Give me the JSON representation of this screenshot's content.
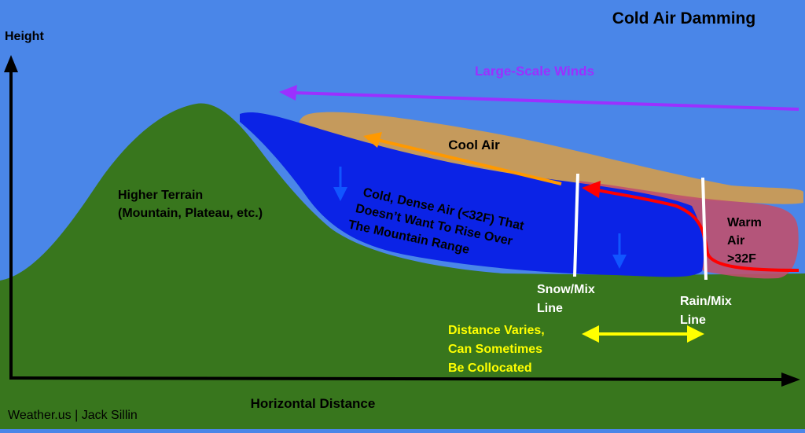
{
  "title": "Cold Air Damming",
  "axes": {
    "y_label": "Height",
    "x_label": "Horizontal Distance"
  },
  "labels": {
    "large_scale_winds": "Large-Scale Winds",
    "cool_air": "Cool Air",
    "higher_terrain": [
      "Higher Terrain",
      "(Mountain, Plateau, etc.)"
    ],
    "cold_dense_air": [
      "Cold, Dense Air (<32F) That",
      "Doesn’t Want To Rise Over",
      "The Mountain Range"
    ],
    "warm_air": [
      "Warm",
      "Air",
      ">32F"
    ],
    "snow_mix_line": [
      "Snow/Mix",
      "Line"
    ],
    "rain_mix_line": [
      "Rain/Mix",
      "Line"
    ],
    "distance_note": [
      "Distance Varies,",
      "Can Sometimes",
      "Be Collocated"
    ]
  },
  "credit": "Weather.us | Jack Sillin",
  "colors": {
    "sky": "#4a86e8",
    "terrain": "#38761d",
    "cold_air": "#0b23e6",
    "cool_air": "#c59a5c",
    "warm_air": "#c0506e",
    "winds": "#9b30ff",
    "cool_arrow": "#ff9900",
    "warm_arrow": "#ff0000",
    "note": "#ffff00",
    "lines": "#ffffff"
  }
}
